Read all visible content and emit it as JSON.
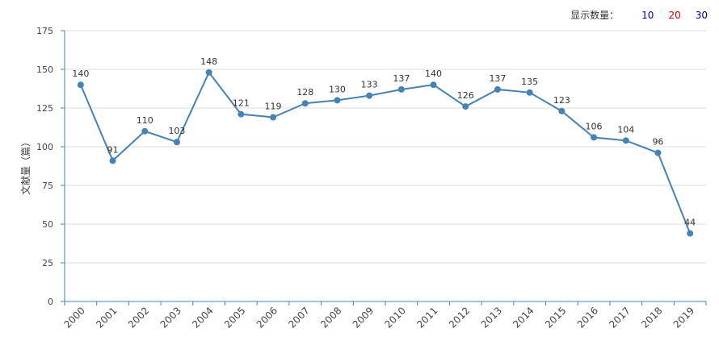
{
  "toolbar": {
    "label": "显示数量：",
    "options": [
      {
        "label": "10",
        "color": "#0000cc"
      },
      {
        "label": "20",
        "color": "#cc0000"
      },
      {
        "label": "30",
        "color": "#000099"
      }
    ]
  },
  "chart_data": {
    "type": "line",
    "ylabel": "文献量（篇）",
    "xlabel": "",
    "ylim": [
      0,
      175
    ],
    "yticks": [
      0,
      25,
      50,
      75,
      100,
      125,
      150,
      175
    ],
    "categories": [
      "2000",
      "2001",
      "2002",
      "2003",
      "2004",
      "2005",
      "2006",
      "2007",
      "2008",
      "2009",
      "2010",
      "2011",
      "2012",
      "2013",
      "2014",
      "2015",
      "2016",
      "2017",
      "2018",
      "2019"
    ],
    "values": [
      140,
      91,
      110,
      103,
      148,
      121,
      119,
      128,
      130,
      133,
      137,
      140,
      126,
      137,
      135,
      123,
      106,
      104,
      96,
      44
    ],
    "line_color": "#4682b4",
    "grid": true
  }
}
